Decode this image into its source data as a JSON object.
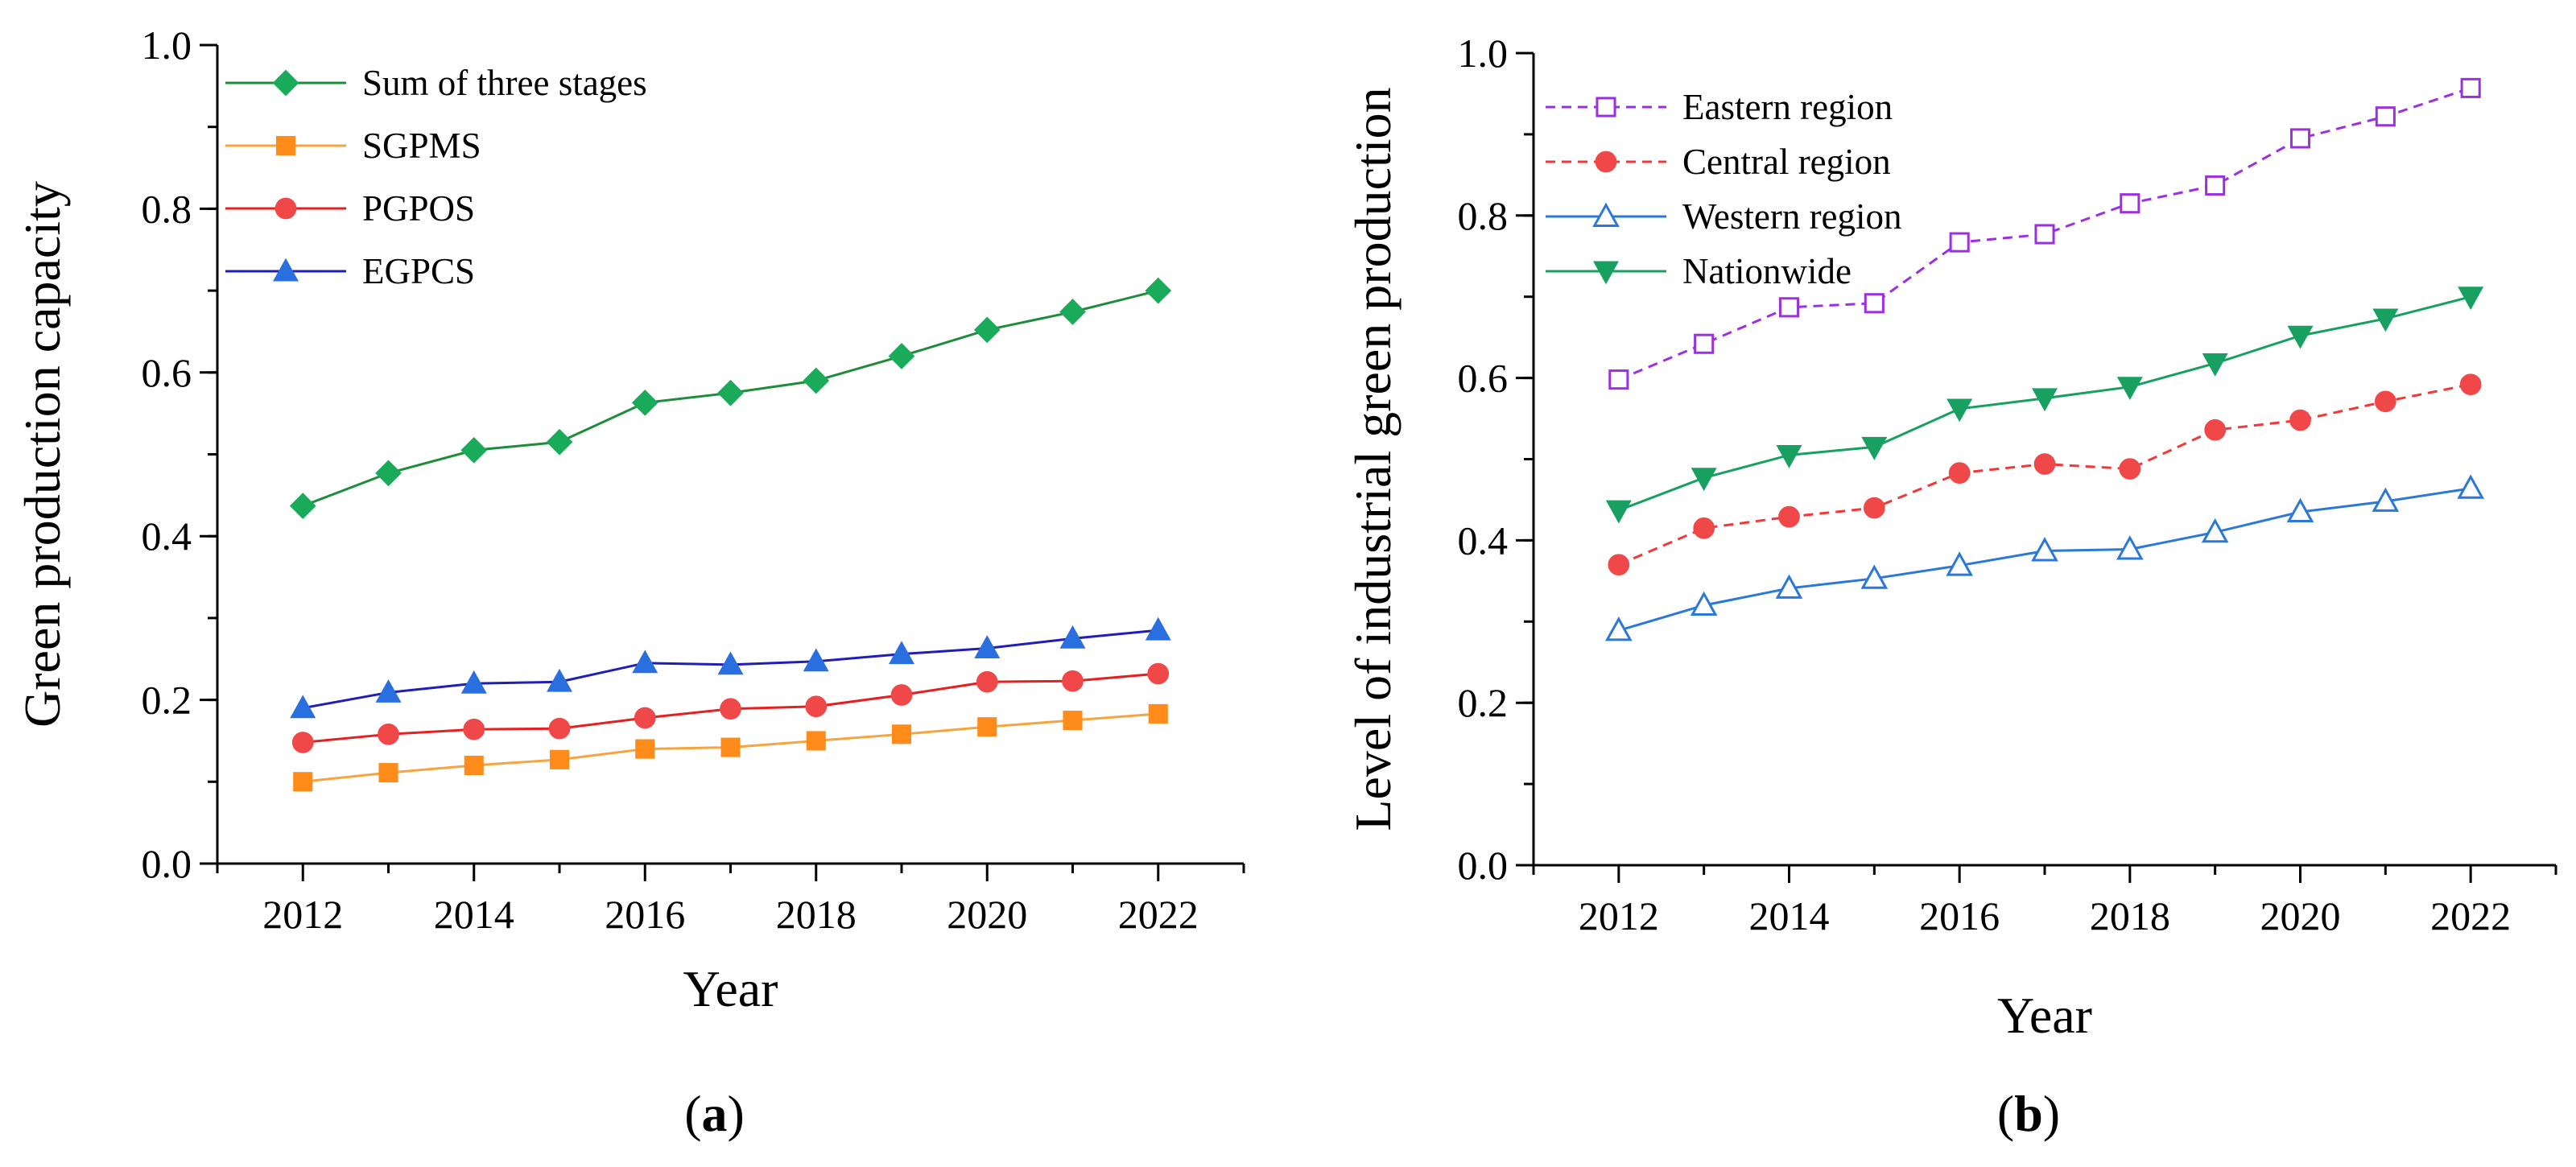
{
  "chart_data": [
    {
      "id": "a",
      "type": "line",
      "panel_label": "(a)",
      "xlabel": "Year",
      "ylabel": "Green production capacity",
      "xlim": [
        2011,
        2023
      ],
      "ylim": [
        0,
        1.0
      ],
      "xticks": [
        2012,
        2014,
        2016,
        2018,
        2020,
        2022
      ],
      "yticks": [
        0.0,
        0.2,
        0.4,
        0.6,
        0.8,
        1.0
      ],
      "legend_position": "top-left",
      "x": [
        2012,
        2013,
        2014,
        2015,
        2016,
        2017,
        2018,
        2019,
        2020,
        2021,
        2022
      ],
      "series": [
        {
          "name": "Sum of three stages",
          "color": "#1e8c3a",
          "marker_color": "#1aab5a",
          "marker": "diamond",
          "filled": true,
          "dashed": false,
          "values": [
            0.437,
            0.477,
            0.505,
            0.515,
            0.563,
            0.575,
            0.59,
            0.62,
            0.652,
            0.674,
            0.7
          ]
        },
        {
          "name": "SGPMS",
          "color": "#f5a540",
          "marker_color": "#ff8c1a",
          "marker": "square",
          "filled": true,
          "dashed": false,
          "values": [
            0.1,
            0.111,
            0.12,
            0.127,
            0.14,
            0.142,
            0.15,
            0.158,
            0.167,
            0.175,
            0.183
          ]
        },
        {
          "name": "PGPOS",
          "color": "#e62020",
          "marker_color": "#f04848",
          "marker": "circle",
          "filled": true,
          "dashed": false,
          "values": [
            0.148,
            0.158,
            0.164,
            0.165,
            0.178,
            0.189,
            0.192,
            0.206,
            0.222,
            0.223,
            0.232
          ]
        },
        {
          "name": "EGPCS",
          "color": "#1f1fb8",
          "marker_color": "#2a6fe0",
          "marker": "triangle-up",
          "filled": true,
          "dashed": false,
          "values": [
            0.19,
            0.209,
            0.22,
            0.222,
            0.245,
            0.243,
            0.247,
            0.256,
            0.263,
            0.275,
            0.285
          ]
        }
      ]
    },
    {
      "id": "b",
      "type": "line",
      "panel_label": "(b)",
      "xlabel": "Year",
      "ylabel": "Level of industrial green production",
      "xlim": [
        2011,
        2023
      ],
      "ylim": [
        0,
        1.0
      ],
      "xticks": [
        2012,
        2014,
        2016,
        2018,
        2020,
        2022
      ],
      "yticks": [
        0.0,
        0.2,
        0.4,
        0.6,
        0.8,
        1.0
      ],
      "legend_position": "top-left",
      "x": [
        2012,
        2013,
        2014,
        2015,
        2016,
        2017,
        2018,
        2019,
        2020,
        2021,
        2022
      ],
      "series": [
        {
          "name": "Eastern region",
          "color": "#9b30e0",
          "marker_color": "#9b30e0",
          "marker": "square",
          "filled": false,
          "dashed": true,
          "values": [
            0.598,
            0.642,
            0.687,
            0.692,
            0.767,
            0.777,
            0.815,
            0.837,
            0.895,
            0.922,
            0.957
          ]
        },
        {
          "name": "Central region",
          "color": "#f03838",
          "marker_color": "#f04848",
          "marker": "circle",
          "filled": true,
          "dashed": true,
          "values": [
            0.37,
            0.415,
            0.429,
            0.44,
            0.483,
            0.494,
            0.488,
            0.536,
            0.548,
            0.571,
            0.592
          ]
        },
        {
          "name": "Western region",
          "color": "#2a78d8",
          "marker_color": "#2a78d8",
          "marker": "triangle-up",
          "filled": false,
          "dashed": false,
          "values": [
            0.289,
            0.32,
            0.341,
            0.353,
            0.369,
            0.387,
            0.389,
            0.41,
            0.435,
            0.448,
            0.464
          ]
        },
        {
          "name": "Nationwide",
          "color": "#18a060",
          "marker_color": "#18a060",
          "marker": "triangle-down",
          "filled": true,
          "dashed": false,
          "values": [
            0.437,
            0.477,
            0.505,
            0.515,
            0.562,
            0.575,
            0.589,
            0.618,
            0.652,
            0.673,
            0.7
          ]
        }
      ]
    }
  ]
}
